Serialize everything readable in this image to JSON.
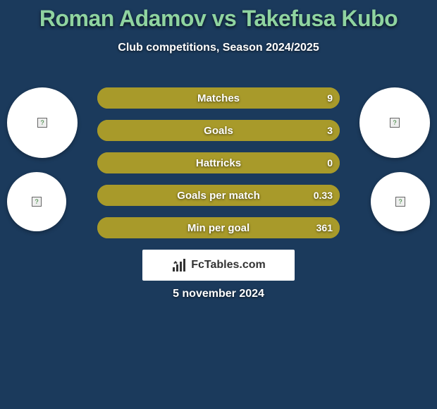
{
  "colors": {
    "background": "#1b3a5c",
    "title": "#8fd4a0",
    "subtitle": "#ffffff",
    "bar_fill": "#a89a2a",
    "bar_border": "#a89a2a",
    "bar_label": "#ffffff",
    "bar_value": "#ffffff",
    "avatar_bg": "#ffffff",
    "logo_bg": "#ffffff",
    "date": "#ffffff"
  },
  "title": "Roman Adamov vs Takefusa Kubo",
  "subtitle": "Club competitions, Season 2024/2025",
  "avatars": {
    "left_top_size": 100,
    "left_bottom_size": 84,
    "right_top_size": 100,
    "right_bottom_size": 84
  },
  "bars": [
    {
      "label": "Matches",
      "left_val": "",
      "right_val": "9",
      "left_pct": 0,
      "right_pct": 100
    },
    {
      "label": "Goals",
      "left_val": "",
      "right_val": "3",
      "left_pct": 0,
      "right_pct": 100
    },
    {
      "label": "Hattricks",
      "left_val": "",
      "right_val": "0",
      "left_pct": 0,
      "right_pct": 100
    },
    {
      "label": "Goals per match",
      "left_val": "",
      "right_val": "0.33",
      "left_pct": 0,
      "right_pct": 100
    },
    {
      "label": "Min per goal",
      "left_val": "",
      "right_val": "361",
      "left_pct": 0,
      "right_pct": 100
    }
  ],
  "bar_style": {
    "height": 30,
    "gap": 16,
    "radius": 15,
    "border_width": 2,
    "label_fontsize": 15,
    "value_fontsize": 14
  },
  "logo_text": "FcTables.com",
  "date": "5 november 2024"
}
